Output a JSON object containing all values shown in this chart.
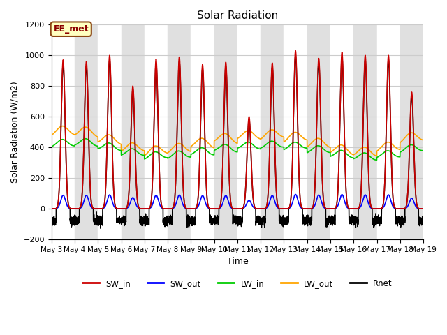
{
  "title": "Solar Radiation",
  "xlabel": "Time",
  "ylabel": "Solar Radiation (W/m2)",
  "ylim": [
    -200,
    1200
  ],
  "annotation_text": "EE_met",
  "annotation_bg": "#FFFFC0",
  "annotation_border": "#8B4513",
  "series": {
    "SW_in": {
      "color": "#CC0000",
      "lw": 1.2
    },
    "SW_out": {
      "color": "#0000FF",
      "lw": 1.2
    },
    "LW_in": {
      "color": "#00CC00",
      "lw": 1.2
    },
    "LW_out": {
      "color": "#FFA500",
      "lw": 1.2
    },
    "Rnet": {
      "color": "#000000",
      "lw": 1.2
    }
  },
  "grid_color": "#CCCCCC",
  "bg_even": "#FFFFFF",
  "bg_odd": "#E0E0E0",
  "n_days": 16,
  "pts_per_day": 288,
  "day_start": 3,
  "sw_in_peaks": [
    970,
    960,
    1000,
    800,
    975,
    990,
    940,
    955,
    600,
    950,
    1030,
    980,
    1020,
    1000,
    1000,
    760
  ],
  "lw_in_base": 360,
  "lw_in_amp": 40,
  "lw_out_base": 400,
  "lw_out_amp": 60,
  "night_rnet": -80
}
